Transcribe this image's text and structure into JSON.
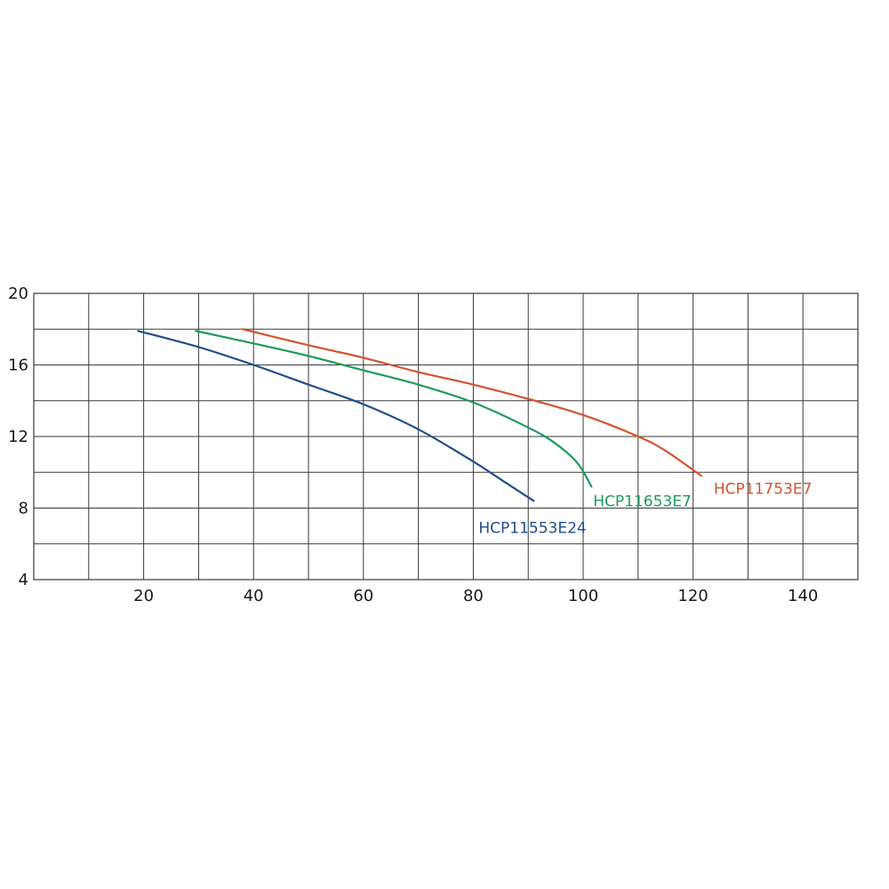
{
  "chart_data": {
    "type": "line",
    "title": "",
    "xlabel": "",
    "ylabel": "",
    "xlim": [
      0,
      150
    ],
    "ylim": [
      4,
      20
    ],
    "x_grid_step": 10,
    "y_grid_step": 2,
    "x_ticks": [
      20,
      40,
      60,
      80,
      100,
      120,
      140
    ],
    "y_ticks": [
      4,
      8,
      12,
      16,
      20
    ],
    "grid": true,
    "legend": "inline-at-line-ends",
    "series": [
      {
        "name": "HCP11553E24",
        "color": "#1f4e8c",
        "x": [
          19,
          30,
          40,
          50,
          60,
          70,
          80,
          85,
          91
        ],
        "y": [
          17.9,
          17.0,
          16.0,
          14.9,
          13.8,
          12.4,
          10.6,
          9.6,
          8.4
        ]
      },
      {
        "name": "HCP11653E7",
        "color": "#1e9a5c",
        "x": [
          29.5,
          40,
          50,
          60,
          70,
          80,
          90,
          95,
          99,
          101.5
        ],
        "y": [
          17.9,
          17.2,
          16.5,
          15.7,
          14.9,
          13.9,
          12.5,
          11.6,
          10.5,
          9.2
        ]
      },
      {
        "name": "HCP11753E7",
        "color": "#d4532e",
        "x": [
          38,
          50,
          60,
          70,
          80,
          90,
          100,
          110,
          115,
          121.5
        ],
        "y": [
          18.0,
          17.1,
          16.4,
          15.6,
          14.9,
          14.1,
          13.2,
          12.0,
          11.2,
          9.8
        ]
      }
    ]
  }
}
